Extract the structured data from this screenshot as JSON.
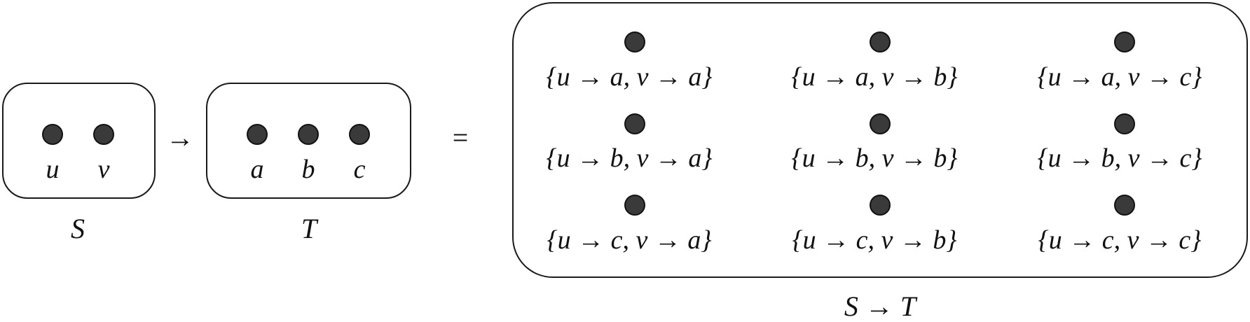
{
  "set_s": {
    "caption": "S",
    "elements": [
      "u",
      "v"
    ]
  },
  "set_t": {
    "caption": "T",
    "elements": [
      "a",
      "b",
      "c"
    ]
  },
  "function_space": {
    "caption": "S → T",
    "functions": [
      [
        "{u → a, v → a}",
        "{u → a, v → b}",
        "{u → a, v → c}"
      ],
      [
        "{u → b, v → a}",
        "{u → b, v → b}",
        "{u → b, v → c}"
      ],
      [
        "{u → c, v → a}",
        "{u → c, v → b}",
        "{u → c, v → c}"
      ]
    ]
  },
  "operators": {
    "arrow": "→",
    "equals": "="
  }
}
